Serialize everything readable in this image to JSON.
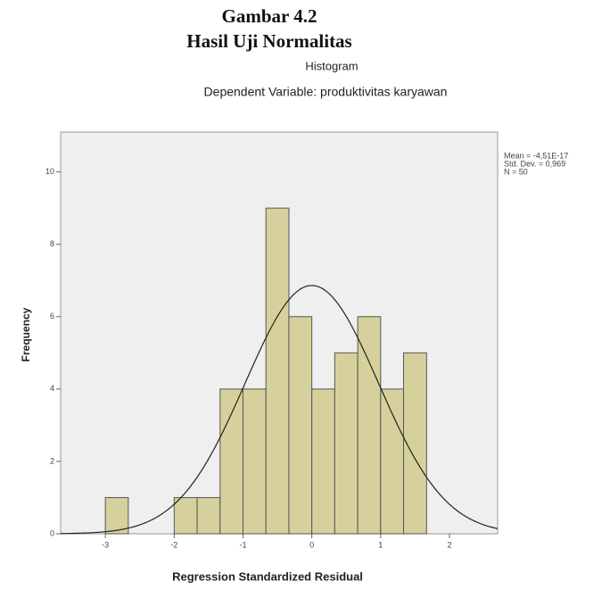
{
  "header": {
    "figure": "Gambar 4.2",
    "caption": "Hasil Uji Normalitas"
  },
  "chart_data": {
    "type": "histogram",
    "title": "Histogram",
    "subtitle": "Dependent Variable: produktivitas karyawan",
    "x_label": "Regression Standardized Residual",
    "y_label": "Frequency",
    "bins": [
      -3,
      -2.667,
      -2.333,
      -2,
      -1.667,
      -1.333,
      -1,
      -0.667,
      -0.333,
      0,
      0.333,
      0.667,
      1,
      1.333,
      1.667
    ],
    "values": [
      1,
      0,
      0,
      1,
      1,
      4,
      4,
      9,
      6,
      4,
      5,
      6,
      4,
      5
    ],
    "color": "#d6d19c",
    "xlim": [
      -3.65,
      2.7
    ],
    "ylim": [
      0,
      11.1
    ],
    "xticks": [
      -3,
      -2,
      -1,
      0,
      1,
      2
    ],
    "yticks": [
      0,
      2,
      4,
      6,
      8,
      10
    ],
    "normal_curve": {
      "mean": {
        "value": -4.51e-17,
        "label": "Mean = -4,51E-17"
      },
      "std": {
        "value": 0.969,
        "label": "Std. Dev. = 0,969"
      },
      "n": {
        "value": 50,
        "label": "N = 50"
      }
    }
  }
}
